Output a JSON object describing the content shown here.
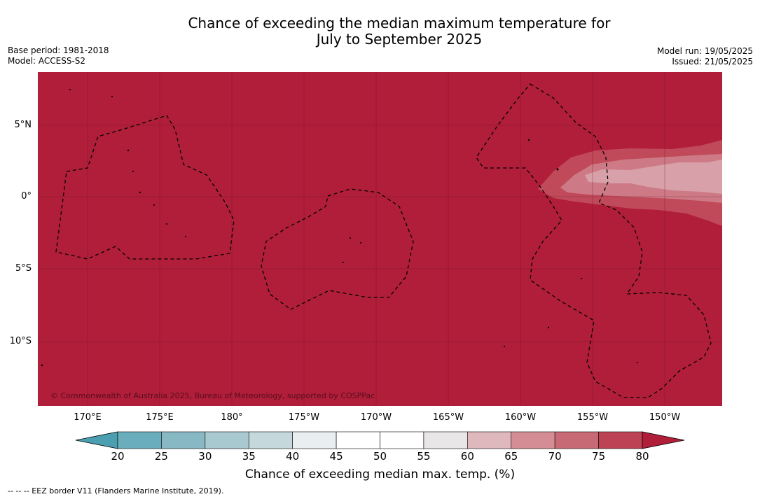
{
  "title_line1": "Chance of exceeding the median maximum temperature for",
  "title_line2": "July to September 2025",
  "meta": {
    "base_period": "Base period: 1981-2018",
    "model": "Model: ACCESS-S2",
    "model_run": "Model run: 19/05/2025",
    "issued": "Issued: 21/05/2025"
  },
  "lat_labels": [
    "5°N",
    "0°",
    "5°S",
    "10°S"
  ],
  "lon_labels": [
    "170°E",
    "175°E",
    "180°",
    "175°W",
    "170°W",
    "165°W",
    "160°W",
    "155°W",
    "150°W"
  ],
  "copyright": "© Commonwealth of Australia 2025, Bureau of Meteorology, supported by COSPPac",
  "colorbar": {
    "ticks": [
      "20",
      "25",
      "30",
      "35",
      "40",
      "45",
      "50",
      "55",
      "60",
      "65",
      "70",
      "75",
      "80"
    ],
    "colors": [
      "#6aaebd",
      "#88b8c4",
      "#a8c9cf",
      "#c5d8dc",
      "#e9eef0",
      "#ffffff",
      "#ffffff",
      "#e8e6e6",
      "#dfb8bd",
      "#d48d95",
      "#c86a75",
      "#bd4354"
    ],
    "low_extend_color": "#4a9fb0",
    "high_extend_color": "#b01e3a",
    "title": "Chance of exceeding median max. temp. (%)"
  },
  "map_colors": {
    "base": "#b01e3a",
    "band_70": "#c04a5a",
    "band_65": "#cd7a86",
    "band_60": "#d8a0a8"
  },
  "legend_note": "--  --  -- EEZ border V11 (Flanders Marine Institute, 2019)."
}
